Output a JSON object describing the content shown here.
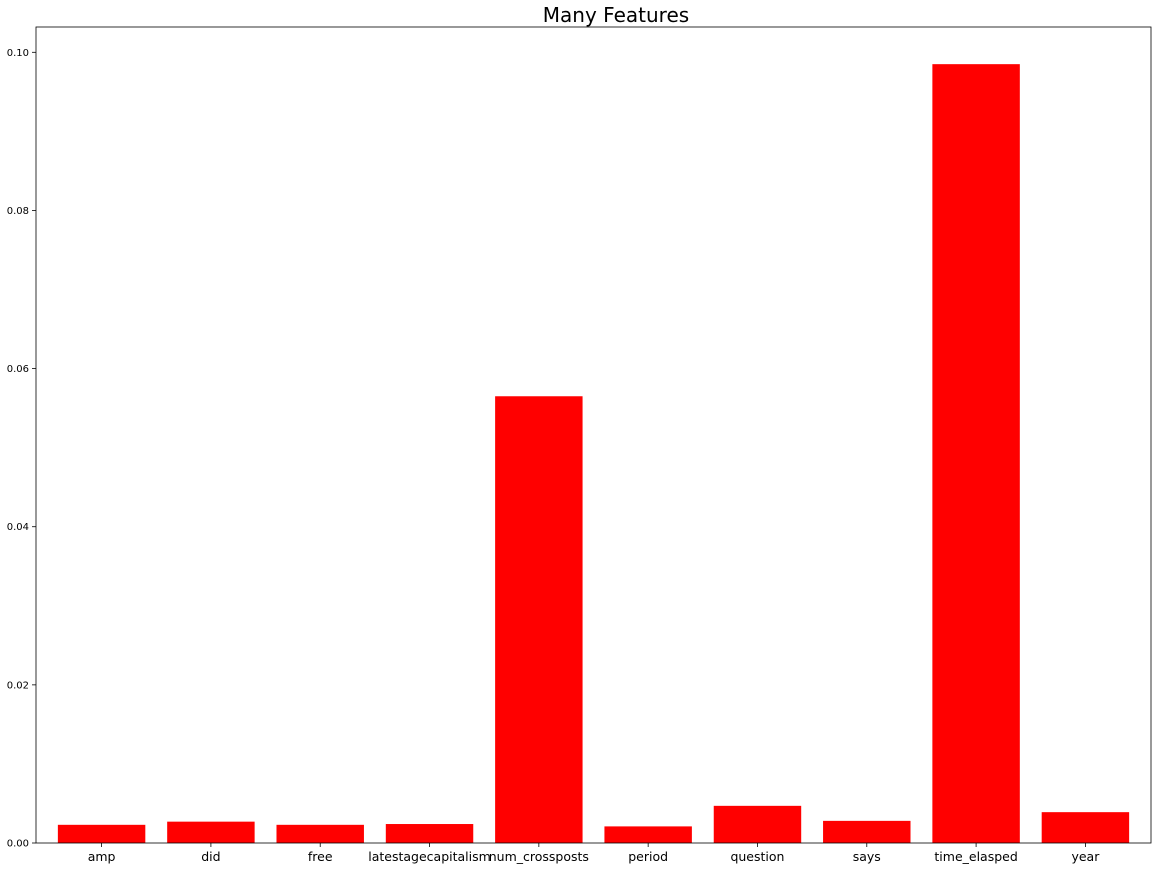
{
  "chart_data": {
    "type": "bar",
    "title": "Many Features",
    "xlabel": "",
    "ylabel": "",
    "categories": [
      "amp",
      "did",
      "free",
      "latestagecapitalism",
      "num_crossposts",
      "period",
      "question",
      "says",
      "time_elasped",
      "year"
    ],
    "values": [
      0.0023,
      0.0027,
      0.0023,
      0.0024,
      0.0565,
      0.0021,
      0.0047,
      0.0028,
      0.0985,
      0.0039
    ],
    "ylim": [
      0,
      0.1032
    ],
    "yticks": [
      0.0,
      0.02,
      0.04,
      0.06,
      0.08,
      0.1
    ],
    "ytick_labels": [
      "0.00",
      "0.02",
      "0.04",
      "0.06",
      "0.08",
      "0.10"
    ],
    "grid": false,
    "legend": "none",
    "bar_color": "#ff0000"
  }
}
